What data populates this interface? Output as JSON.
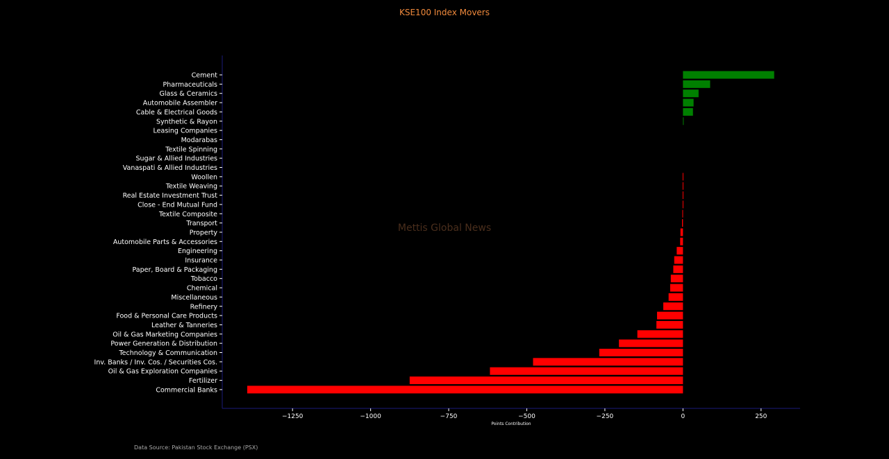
{
  "chart_data": {
    "type": "bar",
    "orientation": "horizontal",
    "title": "KSE100 Index Movers",
    "xlabel": "Points Contribution",
    "ylabel": "",
    "xlim": [
      -1475,
      375
    ],
    "xticks": [
      -1250,
      -1000,
      -750,
      -500,
      -250,
      0,
      250
    ],
    "xtick_labels": [
      "−1250",
      "−1000",
      "−750",
      "−500",
      "−250",
      "0",
      "250"
    ],
    "grid": false,
    "colors": {
      "positive": "#008000",
      "negative": "#ff0000",
      "title": "#f08a3c",
      "axis": "#1a1a7a"
    },
    "categories": [
      "Cement",
      "Pharmaceuticals",
      "Glass & Ceramics",
      "Automobile Assembler",
      "Cable & Electrical Goods",
      "Synthetic & Rayon",
      "Leasing Companies",
      "Modarabas",
      "Textile Spinning",
      "Sugar & Allied Industries",
      "Vanaspati & Allied Industries",
      "Woollen",
      "Textile Weaving",
      "Real Estate Investment Trust",
      "Close - End Mutual Fund",
      "Textile Composite",
      "Transport",
      "Property",
      "Automobile Parts & Accessories",
      "Engineering",
      "Insurance",
      "Paper, Board & Packaging",
      "Tobacco",
      "Chemical",
      "Miscellaneous",
      "Refinery",
      "Food & Personal Care Products",
      "Leather & Tanneries",
      "Oil & Gas Marketing Companies",
      "Power Generation & Distribution",
      "Technology & Communication",
      "Inv. Banks / Inv. Cos. / Securities Cos.",
      "Oil & Gas Exploration Companies",
      "Fertilizer",
      "Commercial Banks"
    ],
    "values": [
      292,
      87,
      50,
      34,
      32,
      1,
      0,
      0,
      0,
      0,
      0,
      -1,
      -1,
      -1,
      -1,
      -2,
      -3,
      -8,
      -9,
      -20,
      -28,
      -31,
      -39,
      -41,
      -46,
      -63,
      -83,
      -85,
      -146,
      -205,
      -268,
      -480,
      -618,
      -875,
      -1395
    ]
  },
  "footer": {
    "source": "Data Source: Pakistan Stock Exchange (PSX)"
  },
  "watermark": "Mettis Global News"
}
